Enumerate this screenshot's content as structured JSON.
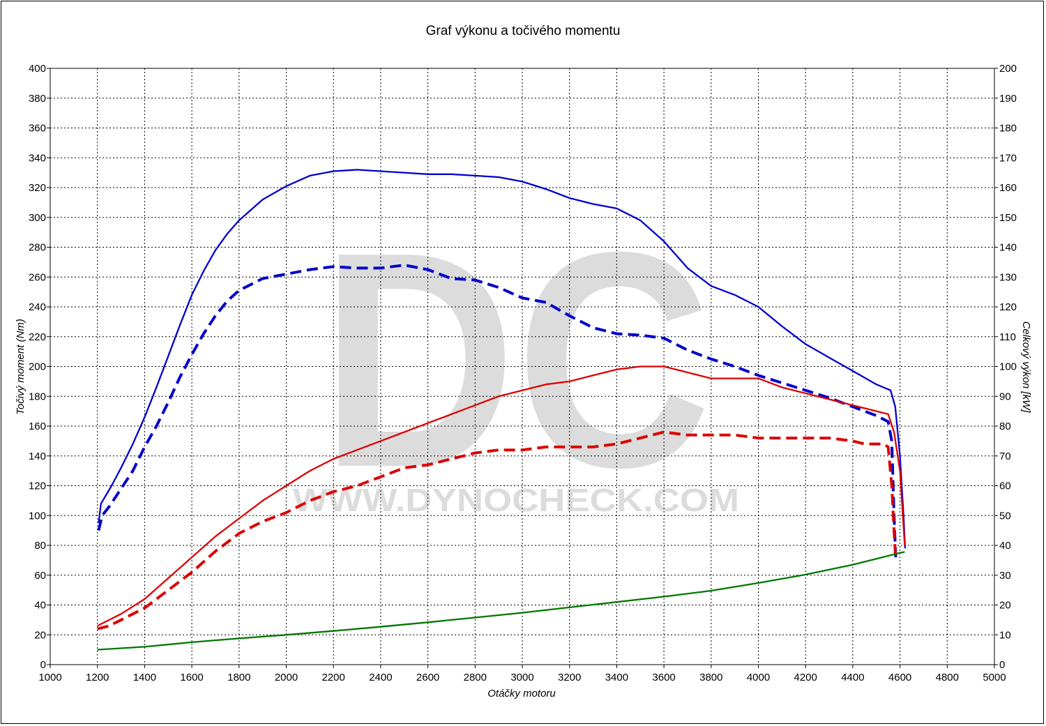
{
  "chart_data": {
    "type": "line",
    "title": "Graf výkonu a točivého momentu",
    "xlabel": "Otáčky motoru",
    "ylabel_left": "Točivý moment (Nm)",
    "ylabel_right": "Celkový výkon [kW]",
    "xlim": [
      1000,
      5000
    ],
    "ylim_left": [
      0,
      400
    ],
    "ylim_right": [
      0,
      200
    ],
    "x_ticks": [
      1000,
      1200,
      1400,
      1600,
      1800,
      2000,
      2200,
      2400,
      2600,
      2800,
      3000,
      3200,
      3400,
      3600,
      3800,
      4000,
      4200,
      4400,
      4600,
      4800,
      5000
    ],
    "y_ticks_left": [
      0,
      20,
      40,
      60,
      80,
      100,
      120,
      140,
      160,
      180,
      200,
      220,
      240,
      260,
      280,
      300,
      320,
      340,
      360,
      380,
      400
    ],
    "y_ticks_right": [
      0,
      10,
      20,
      30,
      40,
      50,
      60,
      70,
      80,
      90,
      100,
      110,
      120,
      130,
      140,
      150,
      160,
      170,
      180,
      190,
      200
    ],
    "grid": true,
    "watermark": {
      "logo": "DC",
      "url": "WWW.DYNOCHECK.COM"
    },
    "series": [
      {
        "axis": "left",
        "color": "#0000cc",
        "style": "solid",
        "points": [
          [
            1205,
            95
          ],
          [
            1215,
            108
          ],
          [
            1230,
            112
          ],
          [
            1260,
            120
          ],
          [
            1300,
            132
          ],
          [
            1350,
            148
          ],
          [
            1400,
            166
          ],
          [
            1450,
            186
          ],
          [
            1500,
            207
          ],
          [
            1550,
            228
          ],
          [
            1600,
            248
          ],
          [
            1650,
            264
          ],
          [
            1700,
            278
          ],
          [
            1750,
            289
          ],
          [
            1800,
            298
          ],
          [
            1900,
            312
          ],
          [
            2000,
            321
          ],
          [
            2100,
            328
          ],
          [
            2200,
            331
          ],
          [
            2300,
            332
          ],
          [
            2400,
            331
          ],
          [
            2500,
            330
          ],
          [
            2600,
            329
          ],
          [
            2700,
            329
          ],
          [
            2800,
            328
          ],
          [
            2900,
            327
          ],
          [
            3000,
            324
          ],
          [
            3100,
            319
          ],
          [
            3200,
            313
          ],
          [
            3300,
            309
          ],
          [
            3400,
            306
          ],
          [
            3500,
            298
          ],
          [
            3600,
            284
          ],
          [
            3700,
            266
          ],
          [
            3800,
            254
          ],
          [
            3900,
            248
          ],
          [
            4000,
            240
          ],
          [
            4100,
            227
          ],
          [
            4200,
            215
          ],
          [
            4300,
            206
          ],
          [
            4400,
            197
          ],
          [
            4500,
            188
          ],
          [
            4560,
            184
          ],
          [
            4580,
            173
          ],
          [
            4600,
            140
          ],
          [
            4615,
            100
          ],
          [
            4622,
            78
          ]
        ]
      },
      {
        "axis": "left",
        "color": "#0000cc",
        "style": "dashed",
        "points": [
          [
            1205,
            90
          ],
          [
            1220,
            100
          ],
          [
            1250,
            106
          ],
          [
            1300,
            118
          ],
          [
            1350,
            130
          ],
          [
            1400,
            146
          ],
          [
            1450,
            160
          ],
          [
            1500,
            176
          ],
          [
            1550,
            193
          ],
          [
            1600,
            208
          ],
          [
            1650,
            222
          ],
          [
            1700,
            234
          ],
          [
            1750,
            244
          ],
          [
            1800,
            251
          ],
          [
            1900,
            259
          ],
          [
            2000,
            262
          ],
          [
            2100,
            265
          ],
          [
            2200,
            267
          ],
          [
            2300,
            266
          ],
          [
            2400,
            266
          ],
          [
            2500,
            268
          ],
          [
            2600,
            265
          ],
          [
            2700,
            259
          ],
          [
            2800,
            258
          ],
          [
            2900,
            253
          ],
          [
            3000,
            246
          ],
          [
            3100,
            243
          ],
          [
            3200,
            234
          ],
          [
            3300,
            226
          ],
          [
            3400,
            222
          ],
          [
            3500,
            221
          ],
          [
            3600,
            219
          ],
          [
            3700,
            211
          ],
          [
            3800,
            205
          ],
          [
            3900,
            200
          ],
          [
            4000,
            194
          ],
          [
            4100,
            189
          ],
          [
            4200,
            184
          ],
          [
            4300,
            179
          ],
          [
            4400,
            173
          ],
          [
            4500,
            167
          ],
          [
            4550,
            163
          ],
          [
            4565,
            150
          ],
          [
            4575,
            100
          ],
          [
            4582,
            72
          ]
        ]
      },
      {
        "axis": "right",
        "color": "#dd0000",
        "style": "solid",
        "points": [
          [
            1200,
            13
          ],
          [
            1250,
            15
          ],
          [
            1300,
            17
          ],
          [
            1400,
            22
          ],
          [
            1500,
            29
          ],
          [
            1600,
            36
          ],
          [
            1700,
            43
          ],
          [
            1800,
            49
          ],
          [
            1900,
            55
          ],
          [
            2000,
            60
          ],
          [
            2100,
            65
          ],
          [
            2200,
            69
          ],
          [
            2300,
            72
          ],
          [
            2400,
            75
          ],
          [
            2500,
            78
          ],
          [
            2600,
            81
          ],
          [
            2700,
            84
          ],
          [
            2800,
            87
          ],
          [
            2900,
            90
          ],
          [
            3000,
            92
          ],
          [
            3100,
            94
          ],
          [
            3200,
            95
          ],
          [
            3300,
            97
          ],
          [
            3400,
            99
          ],
          [
            3500,
            100
          ],
          [
            3600,
            100
          ],
          [
            3700,
            98
          ],
          [
            3800,
            96
          ],
          [
            3900,
            96
          ],
          [
            4000,
            96
          ],
          [
            4100,
            93
          ],
          [
            4200,
            91
          ],
          [
            4300,
            89
          ],
          [
            4400,
            87
          ],
          [
            4500,
            85
          ],
          [
            4550,
            84
          ],
          [
            4575,
            78
          ],
          [
            4600,
            65
          ],
          [
            4612,
            50
          ],
          [
            4620,
            40
          ]
        ]
      },
      {
        "axis": "right",
        "color": "#dd0000",
        "style": "dashed",
        "points": [
          [
            1200,
            12
          ],
          [
            1250,
            13
          ],
          [
            1300,
            15
          ],
          [
            1400,
            19
          ],
          [
            1500,
            25
          ],
          [
            1600,
            31
          ],
          [
            1700,
            38
          ],
          [
            1800,
            44
          ],
          [
            1900,
            48
          ],
          [
            2000,
            51
          ],
          [
            2100,
            55
          ],
          [
            2200,
            58
          ],
          [
            2300,
            60
          ],
          [
            2400,
            63
          ],
          [
            2500,
            66
          ],
          [
            2600,
            67
          ],
          [
            2700,
            69
          ],
          [
            2800,
            71
          ],
          [
            2900,
            72
          ],
          [
            3000,
            72
          ],
          [
            3100,
            73
          ],
          [
            3200,
            73
          ],
          [
            3300,
            73
          ],
          [
            3400,
            74
          ],
          [
            3500,
            76
          ],
          [
            3600,
            78
          ],
          [
            3700,
            77
          ],
          [
            3800,
            77
          ],
          [
            3900,
            77
          ],
          [
            4000,
            76
          ],
          [
            4100,
            76
          ],
          [
            4200,
            76
          ],
          [
            4300,
            76
          ],
          [
            4400,
            75
          ],
          [
            4450,
            74
          ],
          [
            4530,
            74
          ],
          [
            4550,
            73
          ],
          [
            4565,
            60
          ],
          [
            4575,
            45
          ],
          [
            4582,
            35
          ]
        ]
      },
      {
        "axis": "right",
        "color": "#007700",
        "style": "solid",
        "points": [
          [
            1200,
            5
          ],
          [
            1400,
            6
          ],
          [
            1600,
            7.5
          ],
          [
            1800,
            8.8
          ],
          [
            2000,
            10
          ],
          [
            2200,
            11.3
          ],
          [
            2400,
            12.7
          ],
          [
            2600,
            14.2
          ],
          [
            2800,
            15.8
          ],
          [
            3000,
            17.4
          ],
          [
            3200,
            19.2
          ],
          [
            3400,
            21
          ],
          [
            3600,
            22.8
          ],
          [
            3800,
            24.8
          ],
          [
            4000,
            27.4
          ],
          [
            4200,
            30.2
          ],
          [
            4400,
            33.5
          ],
          [
            4600,
            37.5
          ],
          [
            4620,
            37.8
          ]
        ]
      }
    ]
  }
}
